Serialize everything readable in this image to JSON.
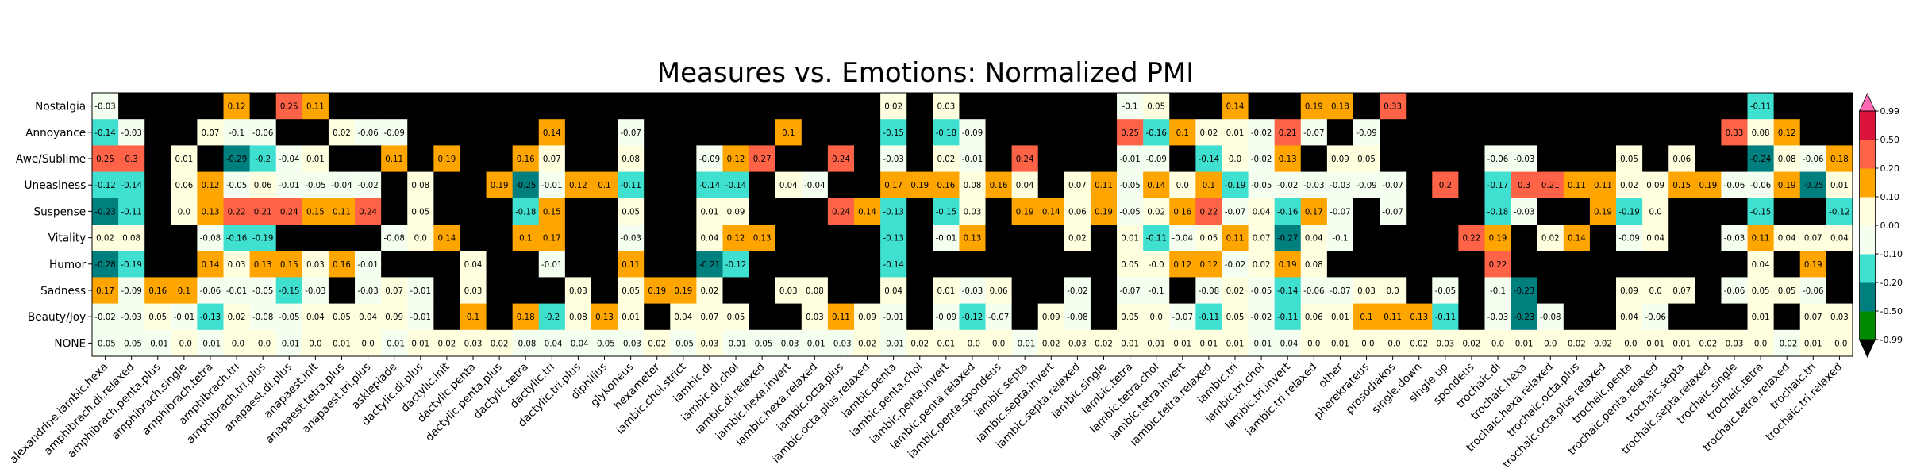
{
  "chart_data": {
    "type": "heatmap",
    "title": "Measures vs. Emotions: Normalized PMI",
    "rows": [
      "Nostalgia",
      "Annoyance",
      "Awe/Sublime",
      "Uneasiness",
      "Suspense",
      "Vitality",
      "Humor",
      "Sadness",
      "Beauty/Joy",
      "NONE"
    ],
    "columns": [
      "alexandrine.iambic.hexa",
      "amphibrach.di.relaxed",
      "amphibrach.penta.plus",
      "amphibrach.single",
      "amphibrach.tetra",
      "amphibrach.tri",
      "amphibrach.tri.plus",
      "anapaest.di.plus",
      "anapaest.init",
      "anapaest.tetra.plus",
      "anapaest.tri.plus",
      "asklepiade",
      "dactylic.di.plus",
      "dactylic.init",
      "dactylic.penta",
      "dactylic.penta.plus",
      "dactylic.tetra",
      "dactylic.tri",
      "dactylic.tri.plus",
      "diphilius",
      "glykoneus",
      "hexameter",
      "iambic.chol.strict",
      "iambic.di",
      "iambic.di.chol",
      "iambic.di.relaxed",
      "iambic.hexa.invert",
      "iambic.hexa.relaxed",
      "iambic.octa.plus",
      "iambic.octa.plus.relaxed",
      "iambic.penta",
      "iambic.penta.chol",
      "iambic.penta.invert",
      "iambic.penta.relaxed",
      "iambic.penta.spondeus",
      "iambic.septa",
      "iambic.septa.invert",
      "iambic.septa.relaxed",
      "iambic.single",
      "iambic.tetra",
      "iambic.tetra.chol",
      "iambic.tetra.invert",
      "iambic.tetra.relaxed",
      "iambic.tri",
      "iambic.tri.chol",
      "iambic.tri.invert",
      "iambic.tri.relaxed",
      "other",
      "pherekrateus",
      "prosodiakos",
      "single.down",
      "single.up",
      "spondeus",
      "trochaic.di",
      "trochaic.hexa",
      "trochaic.hexa.relaxed",
      "trochaic.octa.plus",
      "trochaic.octa.plus.relaxed",
      "trochaic.penta",
      "trochaic.penta.relaxed",
      "trochaic.septa",
      "trochaic.septa.relaxed",
      "trochaic.single",
      "trochaic.tetra",
      "trochaic.tetra.relaxed",
      "trochaic.tri",
      "trochaic.tri.relaxed"
    ],
    "values": [
      [
        -0.03,
        null,
        null,
        null,
        null,
        0.12,
        null,
        0.25,
        0.11,
        null,
        null,
        null,
        null,
        null,
        null,
        null,
        null,
        null,
        null,
        null,
        null,
        null,
        null,
        null,
        null,
        null,
        null,
        null,
        null,
        null,
        0.02,
        null,
        0.03,
        null,
        null,
        null,
        null,
        null,
        null,
        -0.1,
        0.05,
        null,
        null,
        0.14,
        null,
        null,
        0.19,
        0.18,
        null,
        0.33,
        null,
        null,
        null,
        null,
        null,
        null,
        null,
        null,
        null,
        null,
        null,
        null,
        null,
        -0.11,
        null,
        null,
        null
      ],
      [
        -0.14,
        -0.03,
        null,
        null,
        0.07,
        -0.1,
        -0.06,
        null,
        null,
        0.02,
        -0.06,
        -0.09,
        null,
        null,
        null,
        null,
        null,
        0.14,
        null,
        null,
        -0.07,
        null,
        null,
        null,
        null,
        null,
        0.1,
        null,
        null,
        null,
        -0.15,
        null,
        -0.18,
        -0.09,
        null,
        null,
        null,
        null,
        null,
        0.25,
        -0.16,
        0.1,
        0.02,
        0.01,
        -0.02,
        0.21,
        -0.07,
        null,
        -0.09,
        null,
        null,
        null,
        null,
        null,
        null,
        null,
        null,
        null,
        null,
        null,
        null,
        null,
        0.33,
        0.08,
        0.12,
        null,
        null
      ],
      [
        0.25,
        0.3,
        null,
        0.01,
        null,
        -0.29,
        -0.2,
        -0.04,
        0.01,
        null,
        null,
        0.11,
        null,
        0.19,
        null,
        null,
        0.16,
        0.07,
        null,
        null,
        0.08,
        null,
        null,
        -0.09,
        0.12,
        0.27,
        null,
        null,
        0.24,
        null,
        -0.03,
        null,
        0.02,
        -0.01,
        null,
        0.24,
        null,
        null,
        null,
        -0.01,
        -0.09,
        null,
        -0.14,
        0.0,
        -0.02,
        0.13,
        null,
        0.09,
        0.05,
        null,
        null,
        null,
        null,
        -0.06,
        -0.03,
        null,
        null,
        null,
        0.05,
        null,
        0.06,
        null,
        null,
        -0.24,
        0.08,
        -0.06,
        0.18
      ],
      [
        -0.12,
        -0.14,
        null,
        0.06,
        0.12,
        -0.05,
        0.06,
        -0.01,
        -0.05,
        -0.04,
        -0.02,
        null,
        0.08,
        null,
        null,
        0.19,
        -0.25,
        -0.01,
        0.12,
        0.1,
        -0.11,
        null,
        null,
        -0.14,
        -0.14,
        null,
        0.04,
        -0.04,
        null,
        null,
        0.17,
        0.19,
        0.16,
        0.08,
        0.16,
        0.04,
        null,
        0.07,
        0.11,
        -0.05,
        0.14,
        0.0,
        0.1,
        -0.19,
        -0.05,
        -0.02,
        -0.03,
        -0.03,
        -0.09,
        -0.07,
        null,
        0.2,
        null,
        -0.17,
        0.3,
        0.21,
        0.11,
        0.11,
        0.02,
        0.09,
        0.15,
        0.19,
        -0.06,
        -0.06,
        0.19,
        -0.25,
        0.01
      ],
      [
        -0.23,
        -0.11,
        null,
        0.0,
        0.13,
        0.22,
        0.21,
        0.24,
        0.15,
        0.11,
        0.24,
        null,
        0.05,
        null,
        null,
        null,
        -0.18,
        0.15,
        null,
        null,
        0.05,
        null,
        null,
        0.01,
        0.09,
        null,
        null,
        null,
        0.24,
        0.14,
        -0.13,
        null,
        -0.15,
        0.03,
        null,
        0.19,
        0.14,
        0.06,
        0.19,
        -0.05,
        0.02,
        0.16,
        0.22,
        -0.07,
        0.04,
        -0.16,
        0.17,
        -0.07,
        null,
        -0.07,
        null,
        null,
        null,
        -0.18,
        -0.03,
        null,
        null,
        0.19,
        -0.19,
        0.0,
        null,
        null,
        null,
        -0.15,
        null,
        null,
        -0.12
      ],
      [
        0.02,
        0.08,
        null,
        null,
        -0.08,
        -0.16,
        -0.19,
        null,
        null,
        null,
        null,
        -0.08,
        0.0,
        0.14,
        null,
        null,
        0.1,
        0.17,
        null,
        null,
        -0.03,
        null,
        null,
        0.04,
        0.12,
        0.13,
        null,
        null,
        null,
        null,
        -0.13,
        null,
        -0.01,
        0.13,
        null,
        null,
        null,
        0.02,
        null,
        0.01,
        -0.11,
        -0.04,
        0.05,
        0.11,
        0.07,
        -0.27,
        0.04,
        -0.1,
        null,
        null,
        null,
        null,
        0.22,
        0.19,
        null,
        0.02,
        0.14,
        null,
        -0.09,
        0.04,
        null,
        null,
        -0.03,
        0.11,
        0.04,
        0.07,
        0.04
      ],
      [
        -0.28,
        -0.19,
        null,
        null,
        0.14,
        0.03,
        0.13,
        0.15,
        0.03,
        0.16,
        -0.01,
        null,
        null,
        null,
        0.04,
        null,
        null,
        -0.01,
        null,
        null,
        0.11,
        null,
        null,
        -0.21,
        -0.12,
        null,
        null,
        null,
        null,
        null,
        -0.14,
        null,
        null,
        null,
        null,
        null,
        null,
        null,
        null,
        0.05,
        -0.0,
        0.12,
        0.12,
        -0.02,
        0.02,
        0.19,
        0.08,
        null,
        null,
        null,
        null,
        null,
        null,
        0.22,
        null,
        null,
        null,
        null,
        null,
        null,
        null,
        null,
        null,
        0.04,
        null,
        0.19,
        null
      ],
      [
        0.17,
        -0.09,
        0.16,
        0.1,
        -0.06,
        -0.01,
        -0.05,
        -0.15,
        -0.03,
        null,
        -0.03,
        0.07,
        -0.01,
        null,
        0.03,
        null,
        null,
        null,
        0.03,
        null,
        0.05,
        0.19,
        0.19,
        0.02,
        null,
        null,
        0.03,
        0.08,
        null,
        null,
        0.04,
        null,
        0.01,
        -0.03,
        0.06,
        null,
        null,
        -0.02,
        null,
        -0.07,
        -0.1,
        null,
        -0.08,
        0.02,
        -0.05,
        -0.14,
        -0.06,
        -0.07,
        0.03,
        0.0,
        null,
        -0.05,
        null,
        -0.1,
        -0.23,
        null,
        null,
        null,
        0.09,
        0.0,
        0.07,
        null,
        -0.06,
        0.05,
        0.05,
        -0.06,
        null
      ],
      [
        -0.02,
        -0.03,
        0.05,
        -0.01,
        -0.13,
        0.02,
        -0.08,
        -0.05,
        0.04,
        0.05,
        0.04,
        0.09,
        -0.01,
        null,
        0.1,
        null,
        0.18,
        -0.2,
        0.08,
        0.13,
        0.01,
        null,
        0.04,
        0.07,
        0.05,
        null,
        null,
        0.03,
        0.11,
        0.09,
        -0.01,
        null,
        -0.09,
        -0.12,
        -0.07,
        null,
        0.09,
        -0.08,
        null,
        0.05,
        0.0,
        -0.07,
        -0.11,
        0.05,
        -0.02,
        -0.11,
        0.06,
        0.01,
        0.1,
        0.11,
        0.13,
        -0.11,
        null,
        -0.03,
        -0.23,
        -0.08,
        null,
        null,
        0.04,
        -0.06,
        null,
        null,
        null,
        0.01,
        null,
        0.07,
        0.03
      ],
      [
        -0.05,
        -0.05,
        -0.01,
        -0.0,
        -0.01,
        -0.0,
        -0.0,
        -0.01,
        0.0,
        0.01,
        0.0,
        -0.01,
        0.01,
        0.02,
        0.03,
        0.02,
        -0.08,
        -0.04,
        -0.04,
        -0.05,
        -0.03,
        0.02,
        -0.05,
        0.03,
        -0.01,
        -0.05,
        -0.03,
        -0.01,
        -0.03,
        0.02,
        -0.01,
        0.02,
        0.01,
        -0.0,
        0.0,
        -0.01,
        0.02,
        0.03,
        0.02,
        0.01,
        0.01,
        0.01,
        0.01,
        0.01,
        -0.01,
        -0.04,
        0.0,
        0.01,
        -0.0,
        -0.0,
        0.02,
        0.03,
        0.02,
        0.0,
        0.01,
        0.0,
        0.02,
        0.02,
        -0.0,
        0.01,
        0.01,
        0.02,
        0.03,
        0.0,
        -0.02,
        0.01,
        -0.0
      ]
    ],
    "colorbar": {
      "label": "NPMI",
      "ticks": [
        "0.99",
        "0.50",
        "0.20",
        "0.10",
        "0.00",
        "-0.10",
        "-0.20",
        "-0.50",
        "-0.99"
      ],
      "bounds": [
        -0.99,
        -0.5,
        -0.2,
        -0.1,
        0.0,
        0.1,
        0.2,
        0.5,
        0.99
      ],
      "colors": [
        "#008b00",
        "#007f7f",
        "#40e0d0",
        "#f5fff0",
        "#ffffe0",
        "#ffa500",
        "#ff6347",
        "#dc143c"
      ],
      "under_color": "#000000",
      "over_color": "#ff69b4",
      "missing_color": "#000000"
    }
  }
}
